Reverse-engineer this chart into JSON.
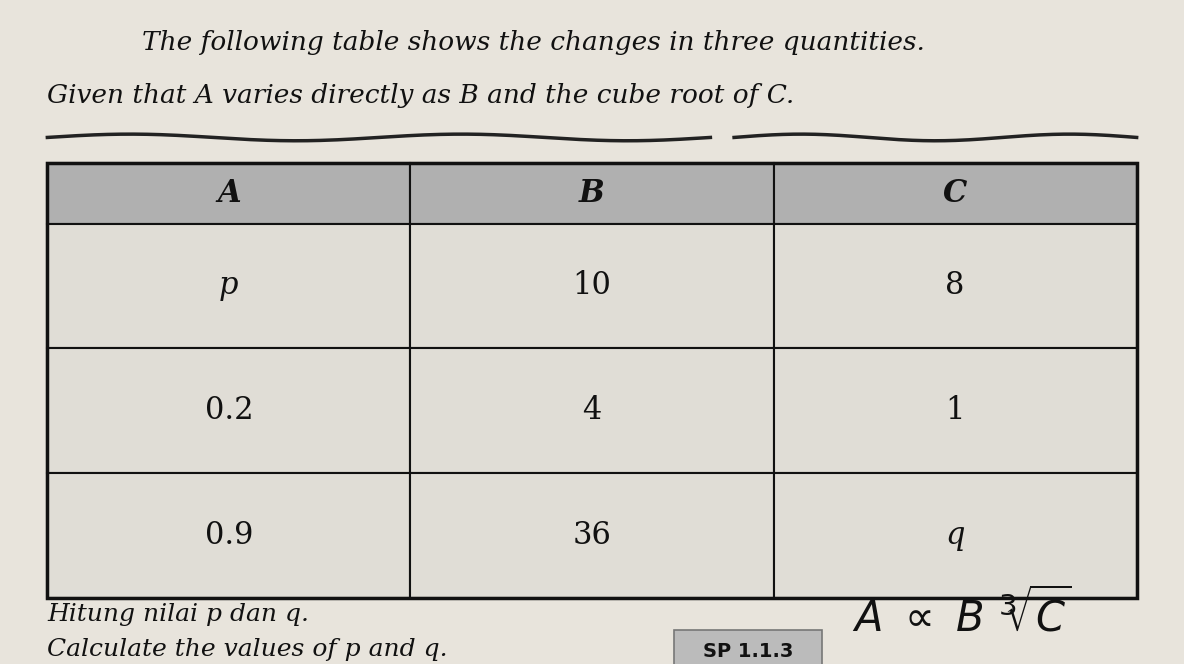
{
  "title_line1": "The following table shows the changes in three quantities.",
  "title_line2": "Given that A varies directly as B and the cube root of C.",
  "col_headers": [
    "A",
    "B",
    "C"
  ],
  "rows": [
    [
      "p",
      "10",
      "8"
    ],
    [
      "0.2",
      "4",
      "1"
    ],
    [
      "0.9",
      "36",
      "q"
    ]
  ],
  "footer_line1": "Hitung nilai p dan q.",
  "footer_line2": "Calculate the values of p and q.",
  "sp_label": "SP 1.1.3",
  "bg_color": "#e8e4dc",
  "header_bg": "#b0b0b0",
  "table_bg": "#e0ddd6",
  "table_border_color": "#111111",
  "text_color": "#111111",
  "title_fontsize": 19,
  "header_fontsize": 22,
  "cell_fontsize": 22,
  "footer_fontsize": 18
}
